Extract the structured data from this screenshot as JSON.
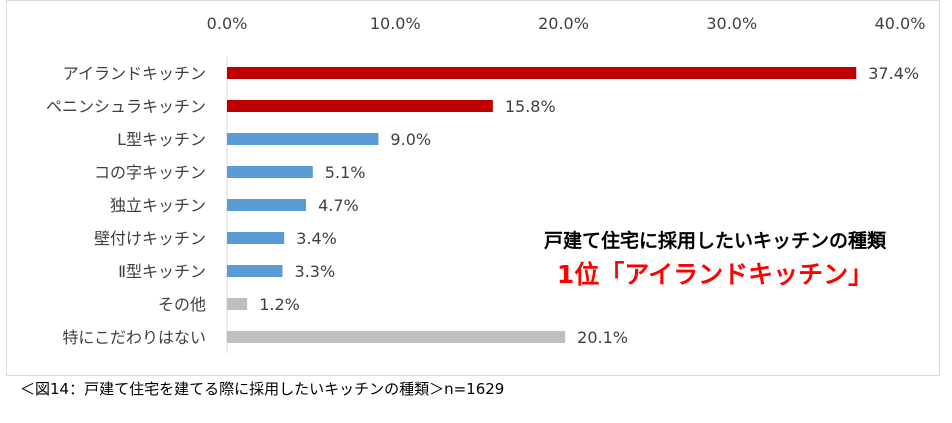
{
  "chart_data": {
    "type": "bar",
    "orientation": "horizontal",
    "categories": [
      "アイランドキッチン",
      "ペニンシュラキッチン",
      "L型キッチン",
      "コの字キッチン",
      "独立キッチン",
      "壁付けキッチン",
      "Ⅱ型キッチン",
      "その他",
      "特にこだわりはない"
    ],
    "values": [
      37.4,
      15.8,
      9.0,
      5.1,
      4.7,
      3.4,
      3.3,
      1.2,
      20.1
    ],
    "value_labels": [
      "37.4%",
      "15.8%",
      "9.0%",
      "5.1%",
      "4.7%",
      "3.4%",
      "3.3%",
      "1.2%",
      "20.1%"
    ],
    "bar_colors": [
      "#c00000",
      "#c00000",
      "#5b9bd5",
      "#5b9bd5",
      "#5b9bd5",
      "#5b9bd5",
      "#5b9bd5",
      "#bfbfbf",
      "#bfbfbf"
    ],
    "xlim": [
      0,
      40
    ],
    "x_ticks": [
      0,
      10,
      20,
      30,
      40
    ],
    "x_tick_labels": [
      "0.0%",
      "10.0%",
      "20.0%",
      "30.0%",
      "40.0%"
    ],
    "x_axis_position": "top",
    "grid": false
  },
  "headline": {
    "line1": "戸建て住宅に採用したいキッチンの種類",
    "line2": "1位「アイランドキッチン」"
  },
  "caption": "＜図14：戸建て住宅を建てる際に採用したいキッチンの種類＞n=1629"
}
